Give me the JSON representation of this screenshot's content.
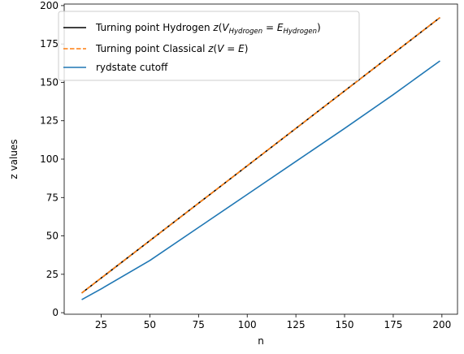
{
  "chart_data": {
    "type": "line",
    "xlabel": "n",
    "ylabel": "z values",
    "xlim": [
      6,
      208
    ],
    "ylim": [
      -1,
      201
    ],
    "xticks": [
      25,
      50,
      75,
      100,
      125,
      150,
      175,
      200
    ],
    "yticks": [
      0,
      25,
      50,
      75,
      100,
      125,
      150,
      175,
      200
    ],
    "grid": false,
    "legend_position": "top-left",
    "series": [
      {
        "name": "Turning point Hydrogen z(V_Hydrogen = E_Hydrogen)",
        "name_parts": {
          "prefix": "Turning point Hydrogen ",
          "z": "z",
          "V": "V",
          "V_sub": "Hydrogen",
          "eq": " = ",
          "E": "E",
          "E_sub": "Hydrogen"
        },
        "color": "#000000",
        "style": "solid",
        "x": [
          15,
          199
        ],
        "y": [
          12.8,
          192.2
        ]
      },
      {
        "name": "Turning point Classical z(V = E)",
        "name_parts": {
          "prefix": "Turning point Classical ",
          "z": "z",
          "inner": "V = E"
        },
        "color": "#ff7f0e",
        "style": "dashed",
        "x": [
          15,
          199
        ],
        "y": [
          12.8,
          192.2
        ]
      },
      {
        "name": "rydstate cutoff",
        "color": "#1f77b4",
        "style": "solid",
        "x": [
          15,
          25,
          50,
          75,
          100,
          125,
          150,
          175,
          199
        ],
        "y": [
          8.5,
          15.5,
          34,
          55.5,
          77,
          98.5,
          120,
          142,
          164
        ]
      }
    ]
  }
}
